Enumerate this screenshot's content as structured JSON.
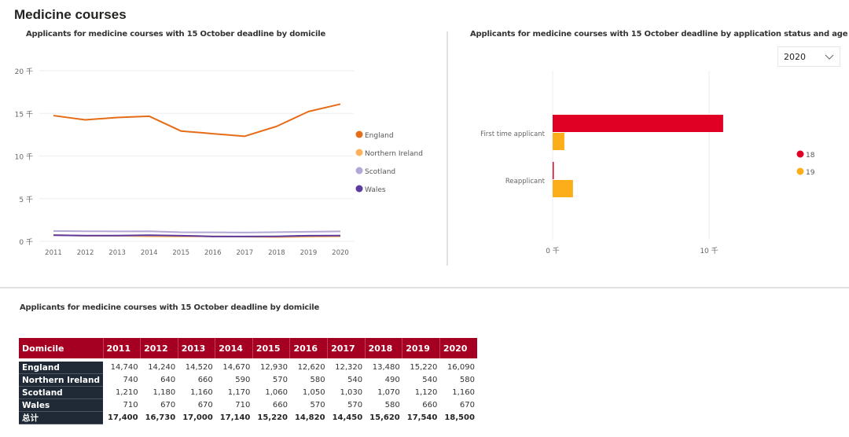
{
  "page": {
    "title": "Medicine courses"
  },
  "slicer": {
    "selected": "2020",
    "icon": "chevron-down-icon"
  },
  "table": {
    "title": "Applicants for medicine courses with 15 October deadline  by domicile",
    "header": [
      "Domicile",
      "2011",
      "2012",
      "2013",
      "2014",
      "2015",
      "2016",
      "2017",
      "2018",
      "2019",
      "2020"
    ],
    "rows": [
      {
        "label": "England",
        "values": [
          "14,740",
          "14,240",
          "14,520",
          "14,670",
          "12,930",
          "12,620",
          "12,320",
          "13,480",
          "15,220",
          "16,090"
        ]
      },
      {
        "label": "Northern Ireland",
        "values": [
          "740",
          "640",
          "660",
          "590",
          "570",
          "580",
          "540",
          "490",
          "540",
          "580"
        ]
      },
      {
        "label": "Scotland",
        "values": [
          "1,210",
          "1,180",
          "1,160",
          "1,170",
          "1,060",
          "1,050",
          "1,030",
          "1,070",
          "1,120",
          "1,160"
        ]
      },
      {
        "label": "Wales",
        "values": [
          "710",
          "670",
          "670",
          "710",
          "660",
          "570",
          "570",
          "580",
          "660",
          "670"
        ]
      },
      {
        "label": "总计",
        "values": [
          "17,400",
          "16,730",
          "17,000",
          "17,140",
          "15,220",
          "14,820",
          "14,450",
          "15,620",
          "17,540",
          "18,500"
        ],
        "total": true
      }
    ]
  },
  "chart_data": [
    {
      "type": "line",
      "title": "Applicants for medicine courses with 15 October deadline  by domicile",
      "xlabel": "",
      "ylabel": "",
      "x": [
        "2011",
        "2012",
        "2013",
        "2014",
        "2015",
        "2016",
        "2017",
        "2018",
        "2019",
        "2020"
      ],
      "ylim": [
        0,
        20000
      ],
      "yticks": [
        0,
        5000,
        10000,
        15000,
        20000
      ],
      "ytick_labels": [
        "0 千",
        "5 千",
        "10 千",
        "15 千",
        "20 千"
      ],
      "grid": true,
      "legend_position": "right",
      "series": [
        {
          "name": "England",
          "color": "#e66c17",
          "values": [
            14740,
            14240,
            14520,
            14670,
            12930,
            12620,
            12320,
            13480,
            15220,
            16090
          ]
        },
        {
          "name": "Northern Ireland",
          "color": "#ffb15c",
          "values": [
            740,
            640,
            660,
            590,
            570,
            580,
            540,
            490,
            540,
            580
          ]
        },
        {
          "name": "Scotland",
          "color": "#b3a7d6",
          "values": [
            1210,
            1180,
            1160,
            1170,
            1060,
            1050,
            1030,
            1070,
            1120,
            1160
          ]
        },
        {
          "name": "Wales",
          "color": "#5c3a9e",
          "values": [
            710,
            670,
            670,
            710,
            660,
            570,
            570,
            580,
            660,
            670
          ]
        }
      ]
    },
    {
      "type": "bar",
      "orientation": "horizontal",
      "title": "Applicants for medicine courses with 15 October deadline  by application status and age",
      "categories": [
        "First time applicant",
        "Reapplicant"
      ],
      "xlim": [
        0,
        12000
      ],
      "xticks": [
        0,
        10000
      ],
      "xtick_labels": [
        "0 千",
        "10 千"
      ],
      "grid": true,
      "legend_position": "right",
      "series": [
        {
          "name": "18",
          "color": "#e00024",
          "values": [
            10900,
            50
          ]
        },
        {
          "name": "19",
          "color": "#fcae1a",
          "values": [
            750,
            1300
          ]
        }
      ]
    }
  ]
}
